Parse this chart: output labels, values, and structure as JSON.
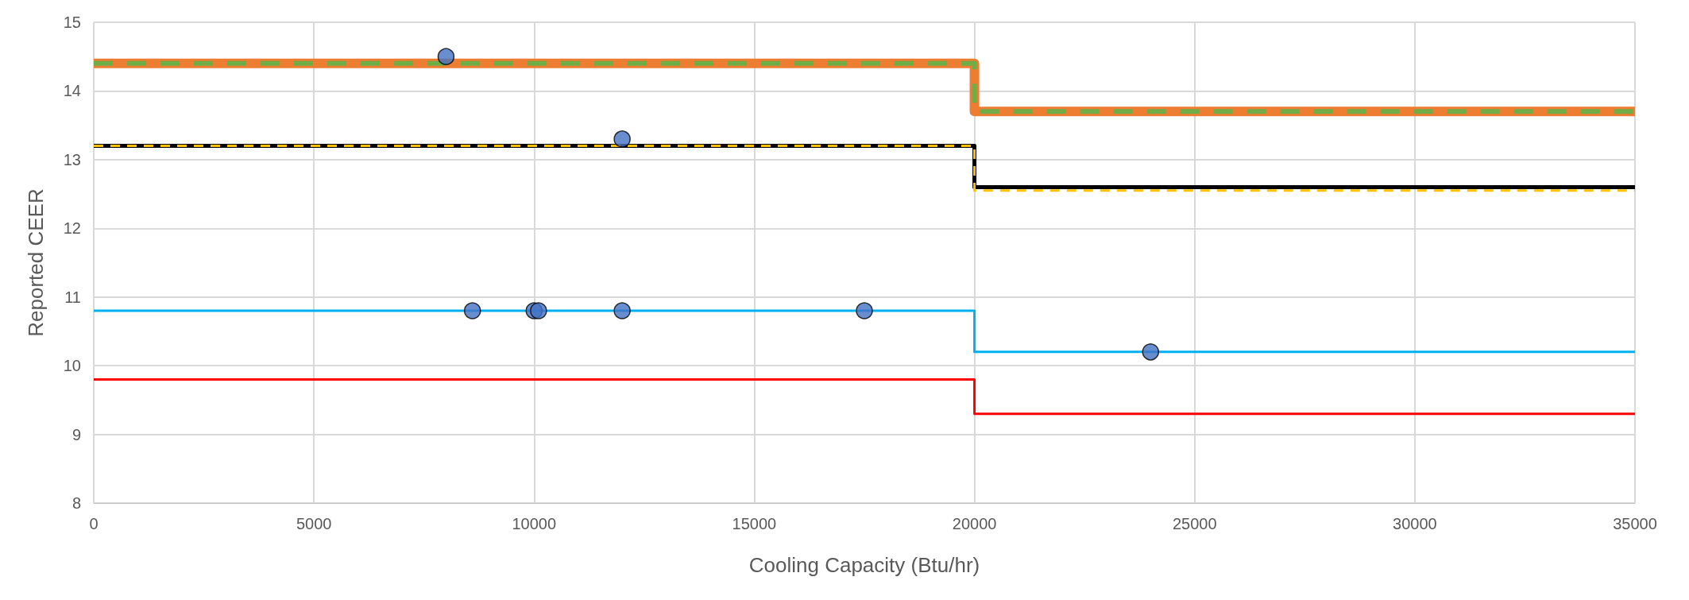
{
  "chart_data": {
    "type": "step",
    "xlabel": "Cooling Capacity (Btu/hr)",
    "ylabel": "Reported CEER",
    "xlim": [
      0,
      35000
    ],
    "xticks": [
      0,
      5000,
      10000,
      15000,
      20000,
      25000,
      30000,
      35000
    ],
    "ylim": [
      8,
      15
    ],
    "yticks": [
      8,
      9,
      10,
      11,
      12,
      13,
      14,
      15
    ],
    "grid": true,
    "series": [
      {
        "color": "#ed7d31",
        "x": [
          0,
          20000,
          35000
        ],
        "values": [
          14.4,
          13.7,
          13.7
        ],
        "line_style": "solid",
        "marker": "none"
      },
      {
        "color": "#70ad47",
        "x": [
          0,
          20000,
          35000
        ],
        "values": [
          14.4,
          13.7,
          13.7
        ],
        "line_style": "dashed",
        "marker": "none"
      },
      {
        "color": "#000000",
        "x": [
          0,
          20000,
          35000
        ],
        "values": [
          13.2,
          12.6,
          12.6
        ],
        "line_style": "solid",
        "marker": "none"
      },
      {
        "color": "#ffc000",
        "x": [
          0,
          20000,
          35000
        ],
        "values": [
          13.2,
          12.55,
          12.55
        ],
        "line_style": "dashed",
        "marker": "none"
      },
      {
        "color": "#00b0f0",
        "x": [
          0,
          20000,
          35000
        ],
        "values": [
          10.8,
          10.2,
          10.2
        ],
        "line_style": "solid",
        "marker": "none"
      },
      {
        "color": "#ff0000",
        "x": [
          0,
          20000,
          35000
        ],
        "values": [
          9.8,
          9.3,
          9.3
        ],
        "line_style": "solid",
        "marker": "none"
      },
      {
        "type": "scatter",
        "color": "#4472c4",
        "x": [
          8000,
          12000,
          8600,
          10000,
          10100,
          12000,
          17500,
          24000
        ],
        "values": [
          14.5,
          13.3,
          10.8,
          10.8,
          10.8,
          10.8,
          10.8,
          10.2
        ],
        "marker": "circle"
      }
    ]
  }
}
